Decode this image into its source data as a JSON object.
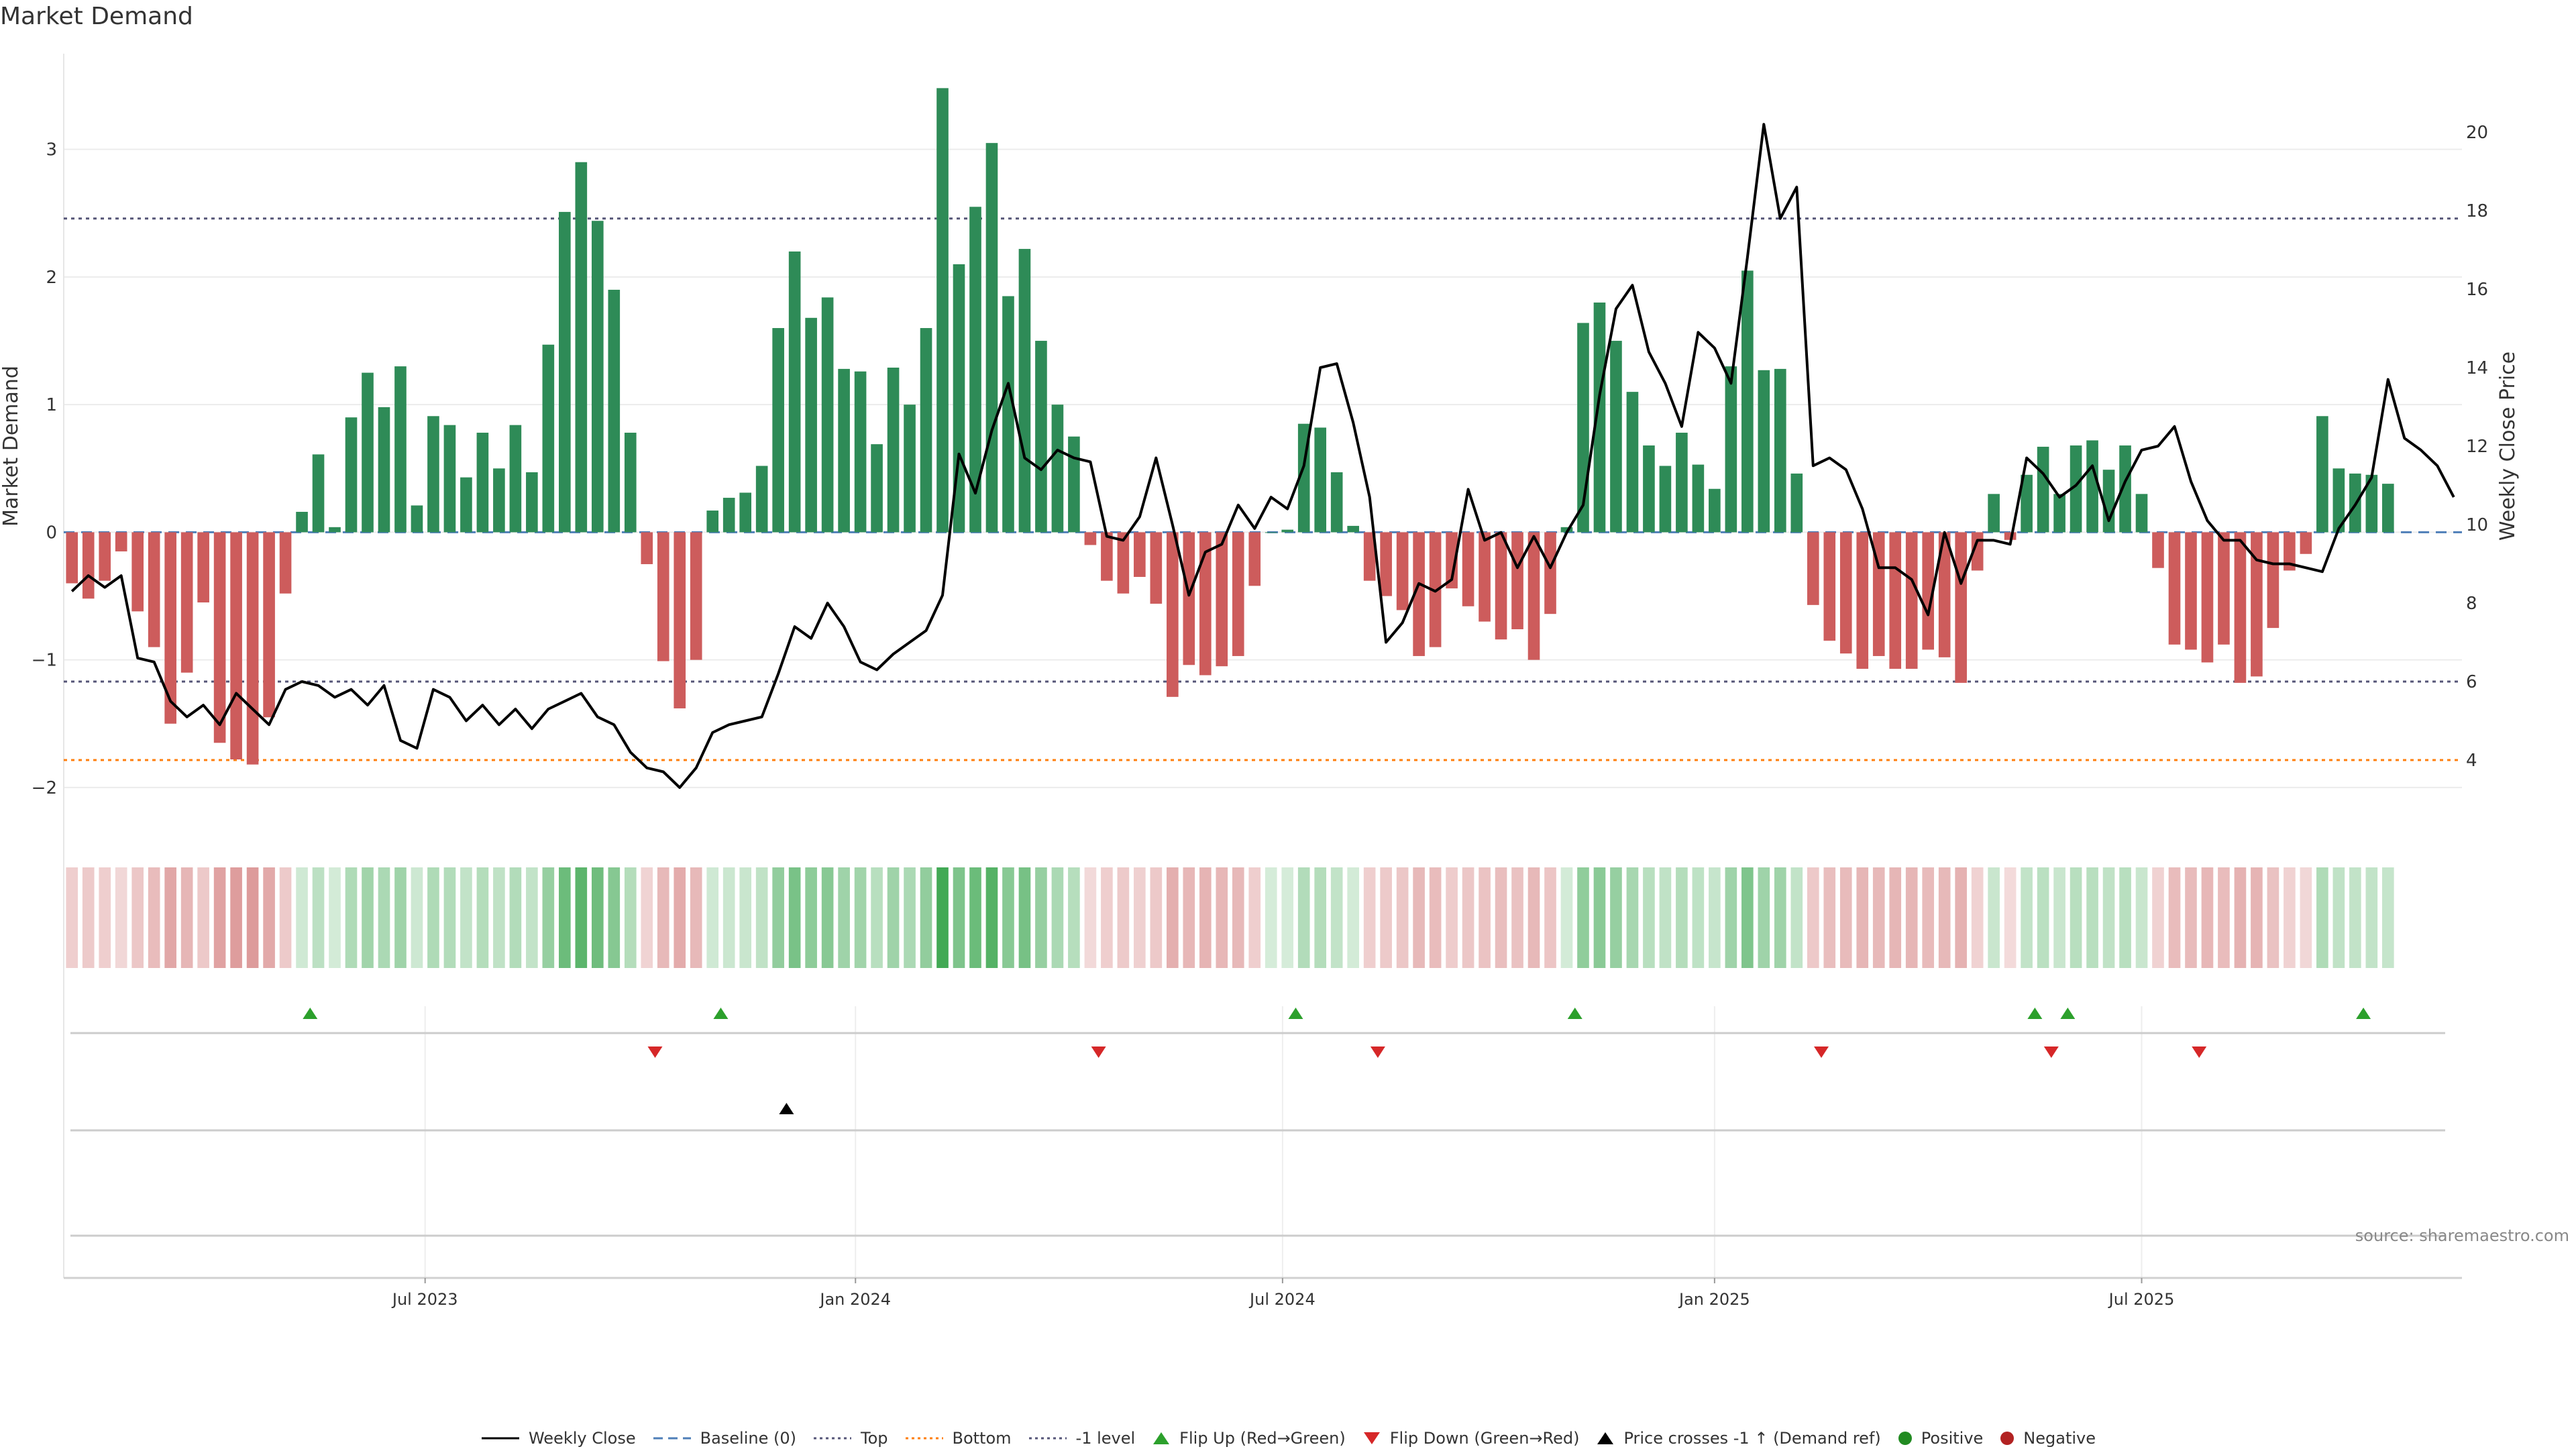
{
  "title": "Market Demand",
  "source": "source: sharemaestro.com",
  "colors": {
    "positive": "#2e8b57",
    "negative": "#cd5c5c",
    "price": "#000000",
    "flip_up": "#2ca02c",
    "flip_down": "#d62728",
    "top_line": "#555577",
    "bottom_line": "#ff7f0e"
  },
  "chart_data": {
    "type": "bar+line",
    "left_axis": {
      "label": "Market Demand",
      "range": [
        -2.4,
        3.75
      ],
      "ticks": [
        3,
        2,
        1,
        0,
        -1,
        -2
      ],
      "tick_labels": [
        "3",
        "2",
        "1",
        "0",
        "−1",
        "−2"
      ]
    },
    "right_axis": {
      "label": "Weekly Close Price",
      "range": [
        2.0,
        22.0
      ],
      "ticks": [
        20,
        18,
        16,
        14,
        12,
        10,
        8,
        6,
        4
      ],
      "tick_labels": [
        "20",
        "18",
        "16",
        "14",
        "12",
        "10",
        "8",
        "6",
        "4"
      ]
    },
    "x_axis": {
      "week_count": 144,
      "ticks": [
        {
          "label": "Jul 2023",
          "week": 21.5
        },
        {
          "label": "Jan 2024",
          "week": 47.7
        },
        {
          "label": "Jul 2024",
          "week": 73.7
        },
        {
          "label": "Jan 2025",
          "week": 100.0
        },
        {
          "label": "Jul 2025",
          "week": 126.0
        }
      ]
    },
    "reference_lines": [
      {
        "name": "Top",
        "axis": "right",
        "value": 17.8,
        "style": "dotted",
        "color": "#555577"
      },
      {
        "name": "-1 level",
        "axis": "right",
        "value": 6.0,
        "style": "dotted",
        "color": "#555577"
      },
      {
        "name": "Bottom",
        "axis": "right",
        "value": 4.0,
        "style": "dotted",
        "color": "#ff7f0e"
      },
      {
        "name": "Baseline (0)",
        "axis": "left",
        "value": 0,
        "style": "dashed",
        "color": "#4f7fb8"
      }
    ],
    "demand": [
      -0.4,
      -0.52,
      -0.38,
      -0.15,
      -0.62,
      -0.9,
      -1.5,
      -1.1,
      -0.55,
      -1.65,
      -1.78,
      -1.82,
      -1.45,
      -0.48,
      0.16,
      0.61,
      0.04,
      0.9,
      1.25,
      0.98,
      1.3,
      0.21,
      0.91,
      0.84,
      0.43,
      0.78,
      0.5,
      0.84,
      0.47,
      1.47,
      2.51,
      2.9,
      2.44,
      1.9,
      0.78,
      -0.25,
      -1.01,
      -1.38,
      -1.0,
      0.17,
      0.27,
      0.31,
      0.52,
      1.6,
      2.2,
      1.68,
      1.84,
      1.28,
      1.26,
      0.69,
      1.29,
      1.0,
      1.6,
      3.48,
      2.1,
      2.55,
      3.05,
      1.85,
      2.22,
      1.5,
      1.0,
      0.75,
      -0.1,
      -0.38,
      -0.48,
      -0.35,
      -0.56,
      -1.29,
      -1.04,
      -1.12,
      -1.05,
      -0.97,
      -0.42,
      0.0,
      0.02,
      0.85,
      0.82,
      0.47,
      0.05,
      -0.38,
      -0.5,
      -0.61,
      -0.97,
      -0.9,
      -0.44,
      -0.58,
      -0.7,
      -0.84,
      -0.76,
      -1.0,
      -0.64,
      0.04,
      1.64,
      1.8,
      1.5,
      1.1,
      0.68,
      0.52,
      0.78,
      0.53,
      0.34,
      1.3,
      2.05,
      1.27,
      1.28,
      0.46,
      -0.57,
      -0.85,
      -0.95,
      -1.07,
      -0.97,
      -1.07,
      -1.07,
      -0.92,
      -0.98,
      -1.18,
      -0.3,
      0.3,
      -0.06,
      0.45,
      0.67,
      0.3,
      0.68,
      0.72,
      0.49,
      0.68,
      0.3,
      -0.28,
      -0.88,
      -0.92,
      -1.02,
      -0.88,
      -1.18,
      -1.13,
      -0.75,
      -0.3,
      -0.17,
      0.91,
      0.5,
      0.46,
      0.45,
      0.38
    ],
    "weekly_close": [
      8.3,
      8.7,
      8.4,
      8.7,
      6.6,
      6.5,
      5.5,
      5.1,
      5.4,
      4.9,
      5.7,
      5.3,
      4.9,
      5.8,
      6.0,
      5.9,
      5.6,
      5.8,
      5.4,
      5.9,
      4.5,
      4.3,
      5.8,
      5.6,
      5.0,
      5.4,
      4.9,
      5.3,
      4.8,
      5.3,
      5.5,
      5.7,
      5.1,
      4.9,
      4.2,
      3.8,
      3.7,
      3.3,
      3.8,
      4.7,
      4.9,
      5.0,
      5.1,
      6.2,
      7.4,
      7.1,
      8.0,
      7.4,
      6.5,
      6.3,
      6.7,
      7.0,
      7.3,
      8.2,
      11.8,
      10.8,
      12.4,
      13.6,
      11.7,
      11.4,
      11.9,
      11.7,
      11.6,
      9.7,
      9.6,
      10.2,
      11.7,
      10.0,
      8.2,
      9.3,
      9.5,
      10.5,
      9.9,
      10.7,
      10.4,
      11.5,
      14.0,
      14.1,
      12.6,
      10.7,
      7.0,
      7.5,
      8.5,
      8.3,
      8.6,
      10.9,
      9.6,
      9.8,
      8.9,
      9.7,
      8.9,
      9.8,
      10.5,
      13.3,
      15.5,
      16.1,
      14.4,
      13.6,
      12.5,
      14.9,
      14.5,
      13.6,
      16.8,
      20.2,
      17.8,
      18.6,
      11.5,
      11.7,
      11.4,
      10.4,
      8.9,
      8.9,
      8.6,
      7.7,
      9.8,
      8.5,
      9.6,
      9.6,
      9.5,
      11.7,
      11.3,
      10.7,
      11.0,
      11.5,
      10.1,
      11.1,
      11.9,
      12.0,
      12.5,
      11.1,
      10.1,
      9.6,
      9.6,
      9.1,
      9.0,
      9.0,
      8.9,
      8.8,
      9.9,
      10.5,
      11.2,
      13.7,
      12.2,
      11.9,
      11.5,
      10.7
    ],
    "flip_up_weeks": [
      14.5,
      39.5,
      74.5,
      91.5,
      119.5,
      121.5,
      139.5
    ],
    "flip_down_weeks": [
      35.5,
      62.5,
      79.5,
      106.5,
      120.5,
      129.5
    ],
    "price_cross_weeks": [
      43.5
    ]
  },
  "legend": [
    {
      "label": "Weekly Close",
      "icon": "solid-line-icon"
    },
    {
      "label": "Baseline (0)",
      "icon": "dashed-line-icon"
    },
    {
      "label": "Top",
      "icon": "dotted-line-icon"
    },
    {
      "label": "Bottom",
      "icon": "orange-dotted-line-icon"
    },
    {
      "label": "-1 level",
      "icon": "dotted-line-icon"
    },
    {
      "label": "Flip Up (Red→Green)",
      "icon": "triangle-up-icon"
    },
    {
      "label": "Flip Down (Green→Red)",
      "icon": "triangle-down-icon"
    },
    {
      "label": "Price crosses -1 ↑ (Demand ref)",
      "icon": "black-triangle-up-icon"
    },
    {
      "label": "Positive",
      "icon": "green-circle-icon"
    },
    {
      "label": "Negative",
      "icon": "red-circle-icon"
    }
  ]
}
